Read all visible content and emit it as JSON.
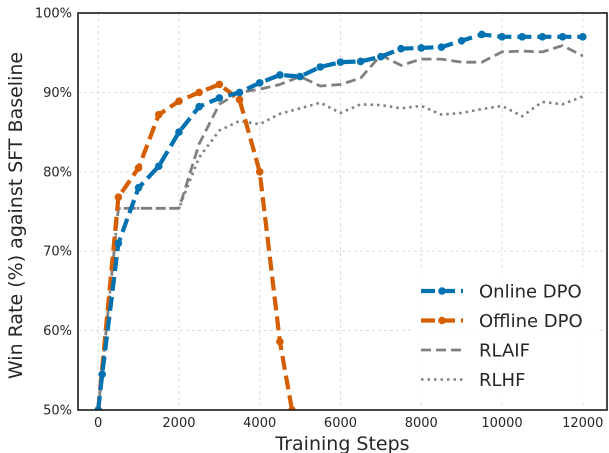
{
  "chart_data": {
    "type": "line",
    "xlabel": "Training Steps",
    "ylabel": "Win Rate (%) against SFT Baseline",
    "xlim": [
      -500,
      12600
    ],
    "ylim": [
      50,
      100
    ],
    "x_ticks": [
      0,
      2000,
      4000,
      6000,
      8000,
      10000,
      12000
    ],
    "y_ticks": [
      50,
      60,
      70,
      80,
      90,
      100
    ],
    "y_tick_suffix": "%",
    "grid": true,
    "legend_position": "lower-right",
    "series": [
      {
        "name": "Online DPO",
        "color": "#0072B2",
        "style": "dashed-markers",
        "x": [
          0,
          100,
          500,
          1000,
          1500,
          2000,
          2500,
          3000,
          3500,
          4000,
          4500,
          5000,
          5500,
          6000,
          6500,
          7000,
          7500,
          8000,
          8500,
          9000,
          9500,
          10000,
          10500,
          11000,
          11500,
          12000
        ],
        "y": [
          50,
          54.5,
          71,
          78,
          80.7,
          85,
          88.2,
          89.3,
          90,
          91.2,
          92.2,
          92,
          93.2,
          93.8,
          93.9,
          94.5,
          95.5,
          95.6,
          95.7,
          96.5,
          97.3,
          97,
          97,
          97,
          97,
          97
        ]
      },
      {
        "name": "Offline DPO",
        "color": "#D55E00",
        "style": "dashed-markers",
        "x": [
          0,
          500,
          1000,
          1500,
          2000,
          2500,
          3000,
          3500,
          4000,
          4500,
          4800
        ],
        "y": [
          50,
          76.8,
          80.5,
          87.2,
          88.9,
          90,
          91,
          89.1,
          80,
          58.6,
          50
        ]
      },
      {
        "name": "RLAIF",
        "color": "#808080",
        "style": "dashed",
        "x": [
          0,
          500,
          1000,
          1500,
          2000,
          2500,
          3000,
          3500,
          4000,
          4500,
          5000,
          5500,
          6000,
          6500,
          7000,
          7500,
          8000,
          8500,
          9000,
          9500,
          10000,
          10500,
          11000,
          11500,
          12000
        ],
        "y": [
          50,
          75.4,
          75.4,
          75.4,
          75.4,
          83.5,
          88.5,
          90,
          90.4,
          91,
          92,
          90.8,
          91,
          91.8,
          94.7,
          93.4,
          94.2,
          94.2,
          93.8,
          93.8,
          95.1,
          95.2,
          95.1,
          95.9,
          94.6
        ]
      },
      {
        "name": "RLHF",
        "color": "#808080",
        "style": "dotted",
        "x": [
          0,
          500,
          1000,
          1500,
          2000,
          2500,
          3000,
          3500,
          4000,
          4500,
          5000,
          5500,
          6000,
          6500,
          7000,
          7500,
          8000,
          8500,
          9000,
          9500,
          10000,
          10500,
          11000,
          11500,
          12000
        ],
        "y": [
          50,
          75.4,
          75.4,
          75.4,
          75.4,
          81.8,
          85.2,
          86.4,
          86,
          87.3,
          88,
          88.7,
          87.4,
          88.5,
          88.4,
          88,
          88.3,
          87.2,
          87.4,
          87.9,
          88.3,
          87,
          88.8,
          88.5,
          89.5
        ]
      }
    ]
  }
}
